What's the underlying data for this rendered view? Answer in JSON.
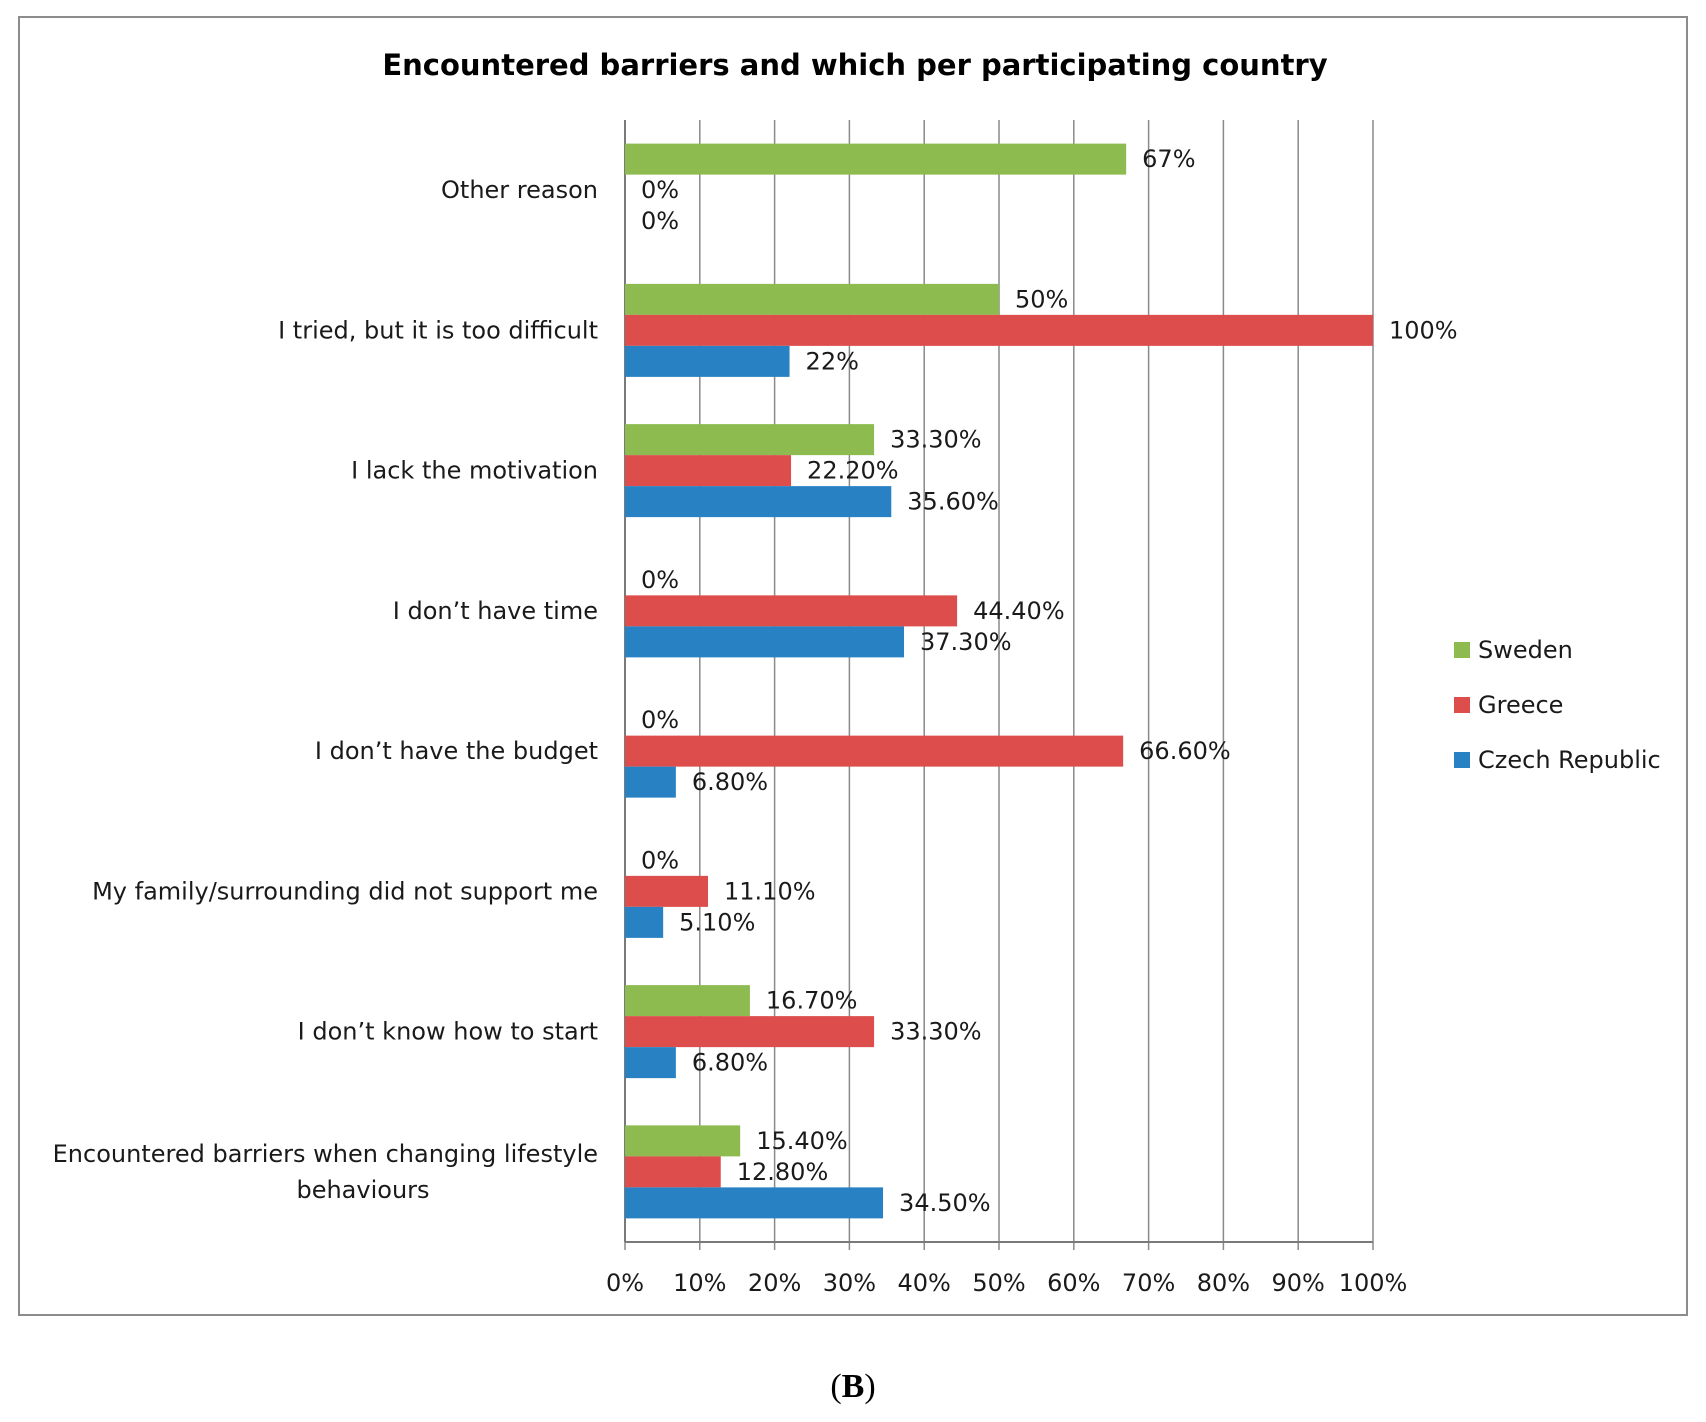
{
  "chart_data": {
    "type": "bar",
    "orientation": "horizontal",
    "title": "Encountered barriers and which per participating country",
    "categories": [
      "Other reason",
      "I tried, but it is too difficult",
      "I lack the motivation",
      "I don’t have time",
      "I don’t have the budget",
      "My family/surrounding did not support me",
      "I don’t know how to start",
      "Encountered barriers when changing lifestyle behaviours"
    ],
    "category_lines": [
      [
        "Other reason"
      ],
      [
        "I tried, but it is too difficult"
      ],
      [
        "I lack the motivation"
      ],
      [
        "I don’t have time"
      ],
      [
        "I don’t have the budget"
      ],
      [
        "My family/surrounding did not support me"
      ],
      [
        "I don’t know how to start"
      ],
      [
        "Encountered barriers when changing lifestyle",
        "behaviours"
      ]
    ],
    "series": [
      {
        "name": "Sweden",
        "color": "#8dbb4f",
        "values": [
          67,
          50,
          33.3,
          0,
          0,
          0,
          16.7,
          15.4
        ],
        "labels": [
          "67%",
          "50%",
          "33.30%",
          "0%",
          "0%",
          "0%",
          "16.70%",
          "15.40%"
        ]
      },
      {
        "name": "Greece",
        "color": "#dc4d4b",
        "values": [
          0,
          100,
          22.2,
          44.4,
          66.6,
          11.1,
          33.3,
          12.8
        ],
        "labels": [
          "0%",
          "100%",
          "22.20%",
          "44.40%",
          "66.60%",
          "11.10%",
          "33.30%",
          "12.80%"
        ]
      },
      {
        "name": "Czech Republic",
        "color": "#2781c3",
        "values": [
          0,
          22,
          35.6,
          37.3,
          6.8,
          5.1,
          6.8,
          34.5
        ],
        "labels": [
          "0%",
          "22%",
          "35.60%",
          "37.30%",
          "6.80%",
          "5.10%",
          "6.80%",
          "34.50%"
        ]
      }
    ],
    "xlim": [
      0,
      100
    ],
    "xticks": [
      "0%",
      "10%",
      "20%",
      "30%",
      "40%",
      "50%",
      "60%",
      "70%",
      "80%",
      "90%",
      "100%"
    ],
    "grid": true,
    "legend_position": "right"
  },
  "caption": {
    "letter": "B"
  }
}
